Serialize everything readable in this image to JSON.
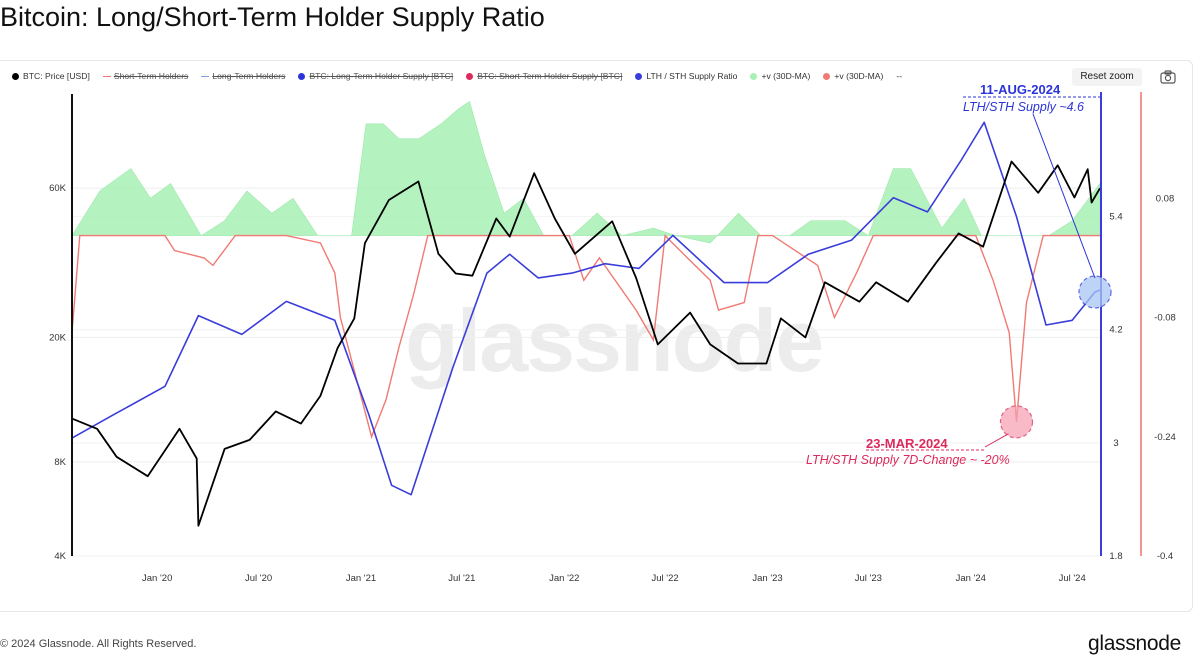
{
  "title": "Bitcoin: Long/Short-Term Holder Supply Ratio",
  "legend": [
    {
      "label": "BTC: Price [USD]",
      "color": "#000000",
      "style": "dot",
      "active": true
    },
    {
      "label": "Short-Term Holders",
      "color": "#f07a74",
      "style": "line",
      "active": false
    },
    {
      "label": "Long-Term Holders",
      "color": "#7aa6e6",
      "style": "line",
      "active": false
    },
    {
      "label": "BTC: Long-Term Holder Supply [BTC]",
      "color": "#2b34d9",
      "style": "dot",
      "active": false
    },
    {
      "label": "BTC: Short-Term Holder Supply [BTC]",
      "color": "#dc2a5c",
      "style": "dot",
      "active": false
    },
    {
      "label": "LTH / STH Supply Ratio",
      "color": "#3a3ddb",
      "style": "dot",
      "active": true
    },
    {
      "label": "+v (30D-MA)",
      "color": "#a8f0b4",
      "style": "dot",
      "active": true
    },
    {
      "label": "+v (30D-MA)",
      "color": "#f07a74",
      "style": "dot",
      "active": true
    },
    {
      "label": "--",
      "color": "#888888",
      "style": "none",
      "active": true
    }
  ],
  "toolbar": {
    "reset_label": "Reset zoom",
    "camera_icon": "camera-icon"
  },
  "annotations": {
    "lth_peak": {
      "date": "11-AUG-2024",
      "text": "LTH/STH Supply ~4.6"
    },
    "sth_drop": {
      "date": "23-MAR-2024",
      "text": "LTH/STH Supply 7D-Change ~ -20%"
    }
  },
  "watermark": "glassnode",
  "footer": "© 2024 Glassnode. All Rights Reserved.",
  "brand": "glassnode",
  "colors": {
    "price": "#000000",
    "ratio": "#3a3ddb",
    "green": "#a8f0b4",
    "red": "#f07a74",
    "blue_axis": "#3a3ddb",
    "red_axis": "#f07a74"
  },
  "chart_data": {
    "type": "line",
    "x_ticks": [
      "Jan '20",
      "Jul '20",
      "Jan '21",
      "Jul '21",
      "Jan '22",
      "Jul '22",
      "Jan '23",
      "Jul '23",
      "Jan '24",
      "Jul '24"
    ],
    "x_tick_dates": [
      "2020-01-01",
      "2020-07-01",
      "2021-01-01",
      "2021-07-01",
      "2022-01-01",
      "2022-07-01",
      "2023-01-01",
      "2023-07-01",
      "2024-01-01",
      "2024-07-01"
    ],
    "x_range": [
      "2019-08-01",
      "2024-08-20"
    ],
    "left_axis": {
      "scale": "log",
      "ticks": [
        "4K",
        "8K",
        "20K",
        "60K"
      ],
      "tick_values": [
        4000,
        8000,
        20000,
        60000
      ],
      "range": [
        4000,
        120000
      ]
    },
    "ratio_axis": {
      "ticks": [
        "1.8",
        "3",
        "4.2",
        "5.4"
      ],
      "tick_values": [
        1.8,
        3,
        4.2,
        5.4
      ],
      "range": [
        1.8,
        6.7
      ]
    },
    "change_axis": {
      "ticks": [
        "-0.4",
        "-0.24",
        "-0.08",
        "0.08"
      ],
      "tick_values": [
        -0.4,
        -0.24,
        -0.08,
        0.08
      ],
      "range": [
        -0.4,
        0.22
      ]
    },
    "series": [
      {
        "name": "BTC: Price [USD]",
        "axis": "left",
        "x": [
          "2019-08-01",
          "2019-09-15",
          "2019-10-20",
          "2019-12-15",
          "2020-02-10",
          "2020-03-12",
          "2020-03-15",
          "2020-05-01",
          "2020-06-15",
          "2020-08-01",
          "2020-09-15",
          "2020-10-20",
          "2020-11-20",
          "2020-12-20",
          "2021-01-08",
          "2021-02-20",
          "2021-04-14",
          "2021-05-20",
          "2021-06-20",
          "2021-07-20",
          "2021-09-01",
          "2021-09-25",
          "2021-11-08",
          "2021-12-15",
          "2022-01-20",
          "2022-03-28",
          "2022-05-10",
          "2022-06-18",
          "2022-08-15",
          "2022-09-20",
          "2022-11-09",
          "2022-12-30",
          "2023-01-25",
          "2023-03-10",
          "2023-04-14",
          "2023-06-15",
          "2023-07-15",
          "2023-09-10",
          "2023-10-30",
          "2023-12-10",
          "2024-01-23",
          "2024-03-14",
          "2024-05-01",
          "2024-06-05",
          "2024-07-05",
          "2024-07-29",
          "2024-08-05",
          "2024-08-20"
        ],
        "y": [
          11000,
          10200,
          8300,
          7200,
          10200,
          8200,
          5000,
          8800,
          9400,
          11600,
          10600,
          13000,
          18500,
          23000,
          40000,
          55000,
          63000,
          37000,
          32000,
          31500,
          48000,
          42000,
          67000,
          48000,
          37000,
          47000,
          31000,
          19000,
          24000,
          19000,
          16500,
          16500,
          23000,
          20000,
          30000,
          26000,
          30000,
          26000,
          34500,
          43000,
          39000,
          73000,
          58000,
          71000,
          56000,
          69000,
          54000,
          60000
        ]
      },
      {
        "name": "LTH / STH Supply Ratio",
        "axis": "ratio",
        "x": [
          "2019-08-01",
          "2019-10-15",
          "2020-01-15",
          "2020-03-15",
          "2020-06-01",
          "2020-08-20",
          "2020-11-15",
          "2021-01-15",
          "2021-02-25",
          "2021-04-01",
          "2021-06-15",
          "2021-08-15",
          "2021-09-25",
          "2021-11-15",
          "2022-01-15",
          "2022-03-15",
          "2022-05-15",
          "2022-07-15",
          "2022-10-15",
          "2023-01-01",
          "2023-03-15",
          "2023-06-01",
          "2023-08-15",
          "2023-10-15",
          "2023-12-15",
          "2024-01-25",
          "2024-03-23",
          "2024-05-15",
          "2024-07-01",
          "2024-08-11",
          "2024-08-20"
        ],
        "y": [
          3.05,
          3.3,
          3.6,
          4.35,
          4.15,
          4.5,
          4.3,
          3.3,
          2.55,
          2.45,
          3.8,
          4.8,
          5.0,
          4.75,
          4.8,
          4.9,
          4.85,
          5.2,
          4.7,
          4.7,
          5.0,
          5.15,
          5.6,
          5.45,
          6.0,
          6.4,
          5.4,
          4.25,
          4.3,
          4.6,
          4.62
        ]
      },
      {
        "name": "+v (30D-MA)",
        "axis": "change",
        "kind": "green-area",
        "x": [
          "2019-08-01",
          "2019-09-20",
          "2019-11-15",
          "2019-12-20",
          "2020-01-25",
          "2020-03-20",
          "2020-05-01",
          "2020-06-10",
          "2020-07-25",
          "2020-09-01",
          "2020-10-15",
          "2020-12-15",
          "2021-01-10",
          "2021-02-10",
          "2021-03-10",
          "2021-04-15",
          "2021-05-25",
          "2021-06-25",
          "2021-07-15",
          "2021-08-10",
          "2021-09-15",
          "2021-10-20",
          "2021-11-25",
          "2022-01-15",
          "2022-03-01",
          "2022-04-15",
          "2022-06-10",
          "2022-07-20",
          "2022-09-20",
          "2022-11-10",
          "2022-12-20",
          "2023-02-10",
          "2023-03-20",
          "2023-05-20",
          "2023-07-01",
          "2023-08-15",
          "2023-09-15",
          "2023-11-10",
          "2023-12-20",
          "2024-01-20",
          "2024-03-10",
          "2024-05-20",
          "2024-07-01",
          "2024-08-20"
        ],
        "y": [
          0.03,
          0.09,
          0.12,
          0.08,
          0.1,
          0.03,
          0.05,
          0.09,
          0.06,
          0.08,
          0.03,
          0.03,
          0.18,
          0.18,
          0.16,
          0.16,
          0.18,
          0.2,
          0.21,
          0.14,
          0.06,
          0.08,
          0.03,
          0.03,
          0.06,
          0.03,
          0.04,
          0.03,
          0.02,
          0.06,
          0.03,
          0.03,
          0.05,
          0.05,
          0.03,
          0.12,
          0.12,
          0.04,
          0.08,
          0.03,
          0.03,
          0.03,
          0.05,
          0.1
        ]
      },
      {
        "name": "+v (30D-MA)",
        "axis": "change",
        "kind": "red-line",
        "x": [
          "2019-08-01",
          "2019-08-15",
          "2019-09-01",
          "2019-11-01",
          "2020-01-15",
          "2020-02-01",
          "2020-03-25",
          "2020-04-10",
          "2020-05-20",
          "2020-08-20",
          "2020-10-20",
          "2020-11-15",
          "2020-11-25",
          "2021-01-20",
          "2021-02-15",
          "2021-03-10",
          "2021-04-05",
          "2021-05-01",
          "2022-01-10",
          "2022-02-05",
          "2022-03-05",
          "2022-05-10",
          "2022-06-10",
          "2022-07-01",
          "2022-08-10",
          "2022-09-20",
          "2022-10-05",
          "2022-11-20",
          "2022-12-15",
          "2023-01-10",
          "2023-04-01",
          "2023-05-01",
          "2023-06-10",
          "2023-07-10",
          "2023-08-10",
          "2023-12-01",
          "2024-01-10",
          "2024-02-10",
          "2024-03-10",
          "2024-03-23",
          "2024-04-10",
          "2024-05-10",
          "2024-06-10",
          "2024-08-20"
        ],
        "y": [
          -0.1,
          0.03,
          0.03,
          0.03,
          0.03,
          0.01,
          0.0,
          -0.01,
          0.03,
          0.03,
          0.02,
          -0.02,
          -0.08,
          -0.24,
          -0.19,
          -0.12,
          -0.05,
          0.03,
          0.03,
          -0.03,
          0.0,
          -0.07,
          -0.11,
          0.03,
          0.0,
          -0.03,
          -0.07,
          -0.06,
          0.03,
          0.03,
          -0.01,
          -0.08,
          -0.02,
          0.03,
          0.03,
          0.03,
          0.03,
          -0.03,
          -0.1,
          -0.22,
          -0.06,
          0.03,
          0.03,
          0.03
        ]
      }
    ]
  }
}
